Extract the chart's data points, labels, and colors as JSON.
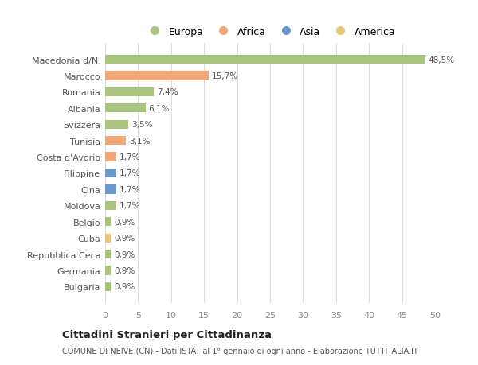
{
  "countries": [
    "Bulgaria",
    "Germania",
    "Repubblica Ceca",
    "Cuba",
    "Belgio",
    "Moldova",
    "Cina",
    "Filippine",
    "Costa d'Avorio",
    "Tunisia",
    "Svizzera",
    "Albania",
    "Romania",
    "Marocco",
    "Macedonia d/N."
  ],
  "values": [
    0.9,
    0.9,
    0.9,
    0.9,
    0.9,
    1.7,
    1.7,
    1.7,
    1.7,
    3.1,
    3.5,
    6.1,
    7.4,
    15.7,
    48.5
  ],
  "labels": [
    "0,9%",
    "0,9%",
    "0,9%",
    "0,9%",
    "0,9%",
    "1,7%",
    "1,7%",
    "1,7%",
    "1,7%",
    "3,1%",
    "3,5%",
    "6,1%",
    "7,4%",
    "15,7%",
    "48,5%"
  ],
  "colors": [
    "#a8c47e",
    "#a8c47e",
    "#a8c47e",
    "#e8c87a",
    "#a8c47e",
    "#a8c47e",
    "#6b98cc",
    "#6b98cc",
    "#f0a878",
    "#f0a878",
    "#a8c47e",
    "#a8c47e",
    "#a8c47e",
    "#f0a878",
    "#a8c47e"
  ],
  "legend_labels": [
    "Europa",
    "Africa",
    "Asia",
    "America"
  ],
  "legend_colors": [
    "#a8c47e",
    "#f0a878",
    "#6b98cc",
    "#e8c87a"
  ],
  "title": "Cittadini Stranieri per Cittadinanza",
  "subtitle": "COMUNE DI NEIVE (CN) - Dati ISTAT al 1° gennaio di ogni anno - Elaborazione TUTTITALIA.IT",
  "xlim": [
    0,
    50
  ],
  "xticks": [
    0,
    5,
    10,
    15,
    20,
    25,
    30,
    35,
    40,
    45,
    50
  ],
  "background_color": "#ffffff",
  "grid_color": "#dddddd"
}
